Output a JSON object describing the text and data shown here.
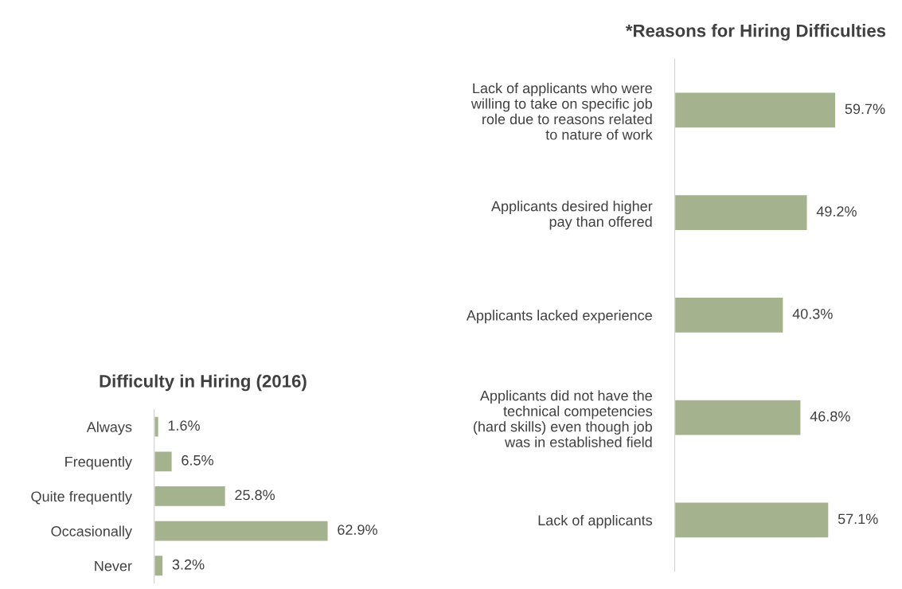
{
  "chart_data": [
    {
      "type": "bar",
      "orientation": "horizontal",
      "title": "Difficulty in Hiring (2016)",
      "categories": [
        "Always",
        "Frequently",
        "Quite frequently",
        "Occasionally",
        "Never"
      ],
      "values": [
        1.6,
        6.5,
        25.8,
        62.9,
        3.2
      ],
      "value_labels": [
        "1.6%",
        "6.5%",
        "25.8%",
        "62.9%",
        "3.2%"
      ],
      "color": "#a4b38e",
      "tick_labels": "y",
      "grid": false,
      "legend": false
    },
    {
      "type": "bar",
      "orientation": "horizontal",
      "title": "*Reasons for Hiring Difficulties",
      "categories": [
        "Lack of applicants who were\nwilling to take on specific job\nrole due to reasons related\nto nature of work",
        "Applicants desired higher\npay than offered",
        "Applicants lacked experience",
        "Applicants did not have the\ntechnical competencies\n(hard skills) even though job\nwas in established field",
        "Lack of applicants"
      ],
      "values": [
        59.7,
        49.2,
        40.3,
        46.8,
        57.1
      ],
      "value_labels": [
        "59.7%",
        "49.2%",
        "40.3%",
        "46.8%",
        "57.1%"
      ],
      "color": "#a4b38e",
      "tick_labels": "y",
      "grid": false,
      "legend": false
    }
  ]
}
